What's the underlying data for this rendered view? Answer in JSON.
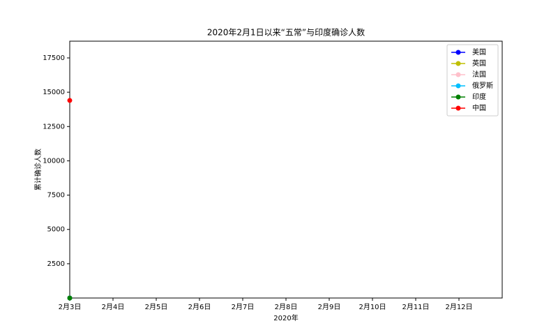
{
  "chart_data": {
    "type": "line",
    "title": "2020年2月1日以来“五常”与印度确诊人数",
    "x_label": "2020年",
    "y_label": "累计确诊人数",
    "categories": [
      "2月3日",
      "2月4日",
      "2月5日",
      "2月6日",
      "2月7日",
      "2月8日",
      "2月9日",
      "2月10日",
      "2月11日",
      "2月12日"
    ],
    "series": [
      {
        "name": "美国",
        "color": "#0000ff",
        "values": [
          11,
          null,
          null,
          null,
          null,
          null,
          null,
          null,
          null,
          null
        ]
      },
      {
        "name": "英国",
        "color": "#bfbf00",
        "values": [
          2,
          null,
          null,
          null,
          null,
          null,
          null,
          null,
          null,
          null
        ]
      },
      {
        "name": "法国",
        "color": "#ffc0cb",
        "values": [
          6,
          null,
          null,
          null,
          null,
          null,
          null,
          null,
          null,
          null
        ]
      },
      {
        "name": "俄罗斯",
        "color": "#00bfff",
        "values": [
          2,
          null,
          null,
          null,
          null,
          null,
          null,
          null,
          null,
          null
        ]
      },
      {
        "name": "印度",
        "color": "#008000",
        "values": [
          3,
          null,
          null,
          null,
          null,
          null,
          null,
          null,
          null,
          null
        ]
      },
      {
        "name": "中国",
        "color": "#ff0000",
        "values": [
          14400,
          null,
          null,
          null,
          null,
          null,
          null,
          null,
          null,
          null
        ]
      }
    ],
    "ylim": [
      2,
      18720
    ],
    "yticks": [
      2500,
      5000,
      7500,
      10000,
      12500,
      15000,
      17500
    ],
    "legend": "upper right"
  }
}
